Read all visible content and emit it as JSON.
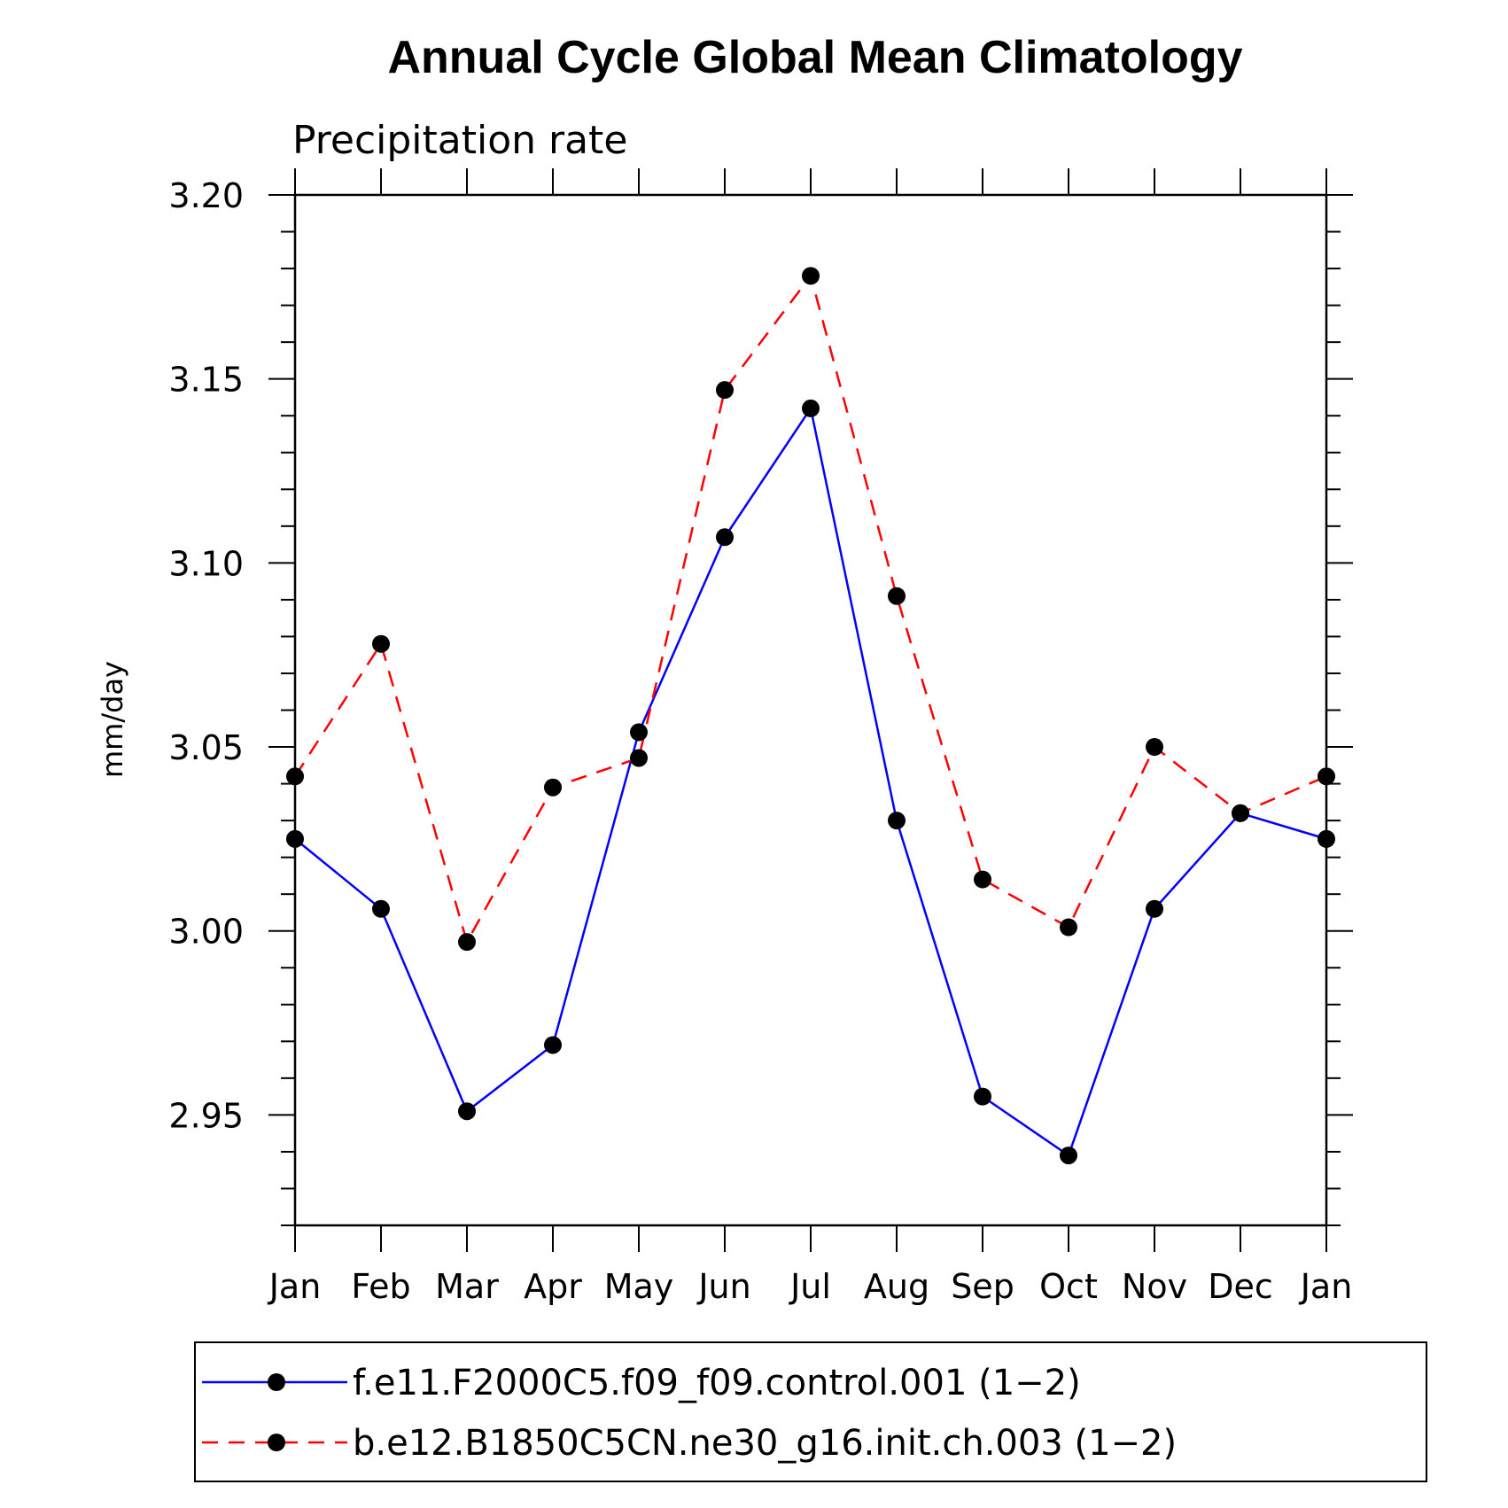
{
  "chart_data": {
    "type": "line",
    "title": "Annual Cycle Global Mean Climatology",
    "subtitle": "Precipitation rate",
    "xlabel": "",
    "ylabel": "mm/day",
    "categories": [
      "Jan",
      "Feb",
      "Mar",
      "Apr",
      "May",
      "Jun",
      "Jul",
      "Aug",
      "Sep",
      "Oct",
      "Nov",
      "Dec",
      "Jan"
    ],
    "ylim": [
      2.92,
      3.2
    ],
    "yticks": [
      "3.20",
      "3.15",
      "3.10",
      "3.05",
      "3.00",
      "2.95"
    ],
    "ytick_values": [
      3.2,
      3.15,
      3.1,
      3.05,
      3.0,
      2.95
    ],
    "grid": false,
    "legend_position": "bottom",
    "series": [
      {
        "name": "f.e11.F2000C5.f09_f09.control.001 (1−2)",
        "color": "#0000ff",
        "line_style": "solid",
        "marker": "filled-circle",
        "values": [
          3.025,
          3.006,
          2.951,
          2.969,
          3.054,
          3.107,
          3.142,
          3.03,
          2.955,
          2.939,
          3.006,
          3.032,
          3.025
        ]
      },
      {
        "name": "b.e12.B1850C5CN.ne30_g16.init.ch.003 (1−2)",
        "color": "#ff0000",
        "line_style": "dashed",
        "marker": "filled-circle",
        "values": [
          3.042,
          3.078,
          2.997,
          3.039,
          3.047,
          3.147,
          3.178,
          3.091,
          3.014,
          3.001,
          3.05,
          3.032,
          3.042
        ]
      }
    ]
  }
}
